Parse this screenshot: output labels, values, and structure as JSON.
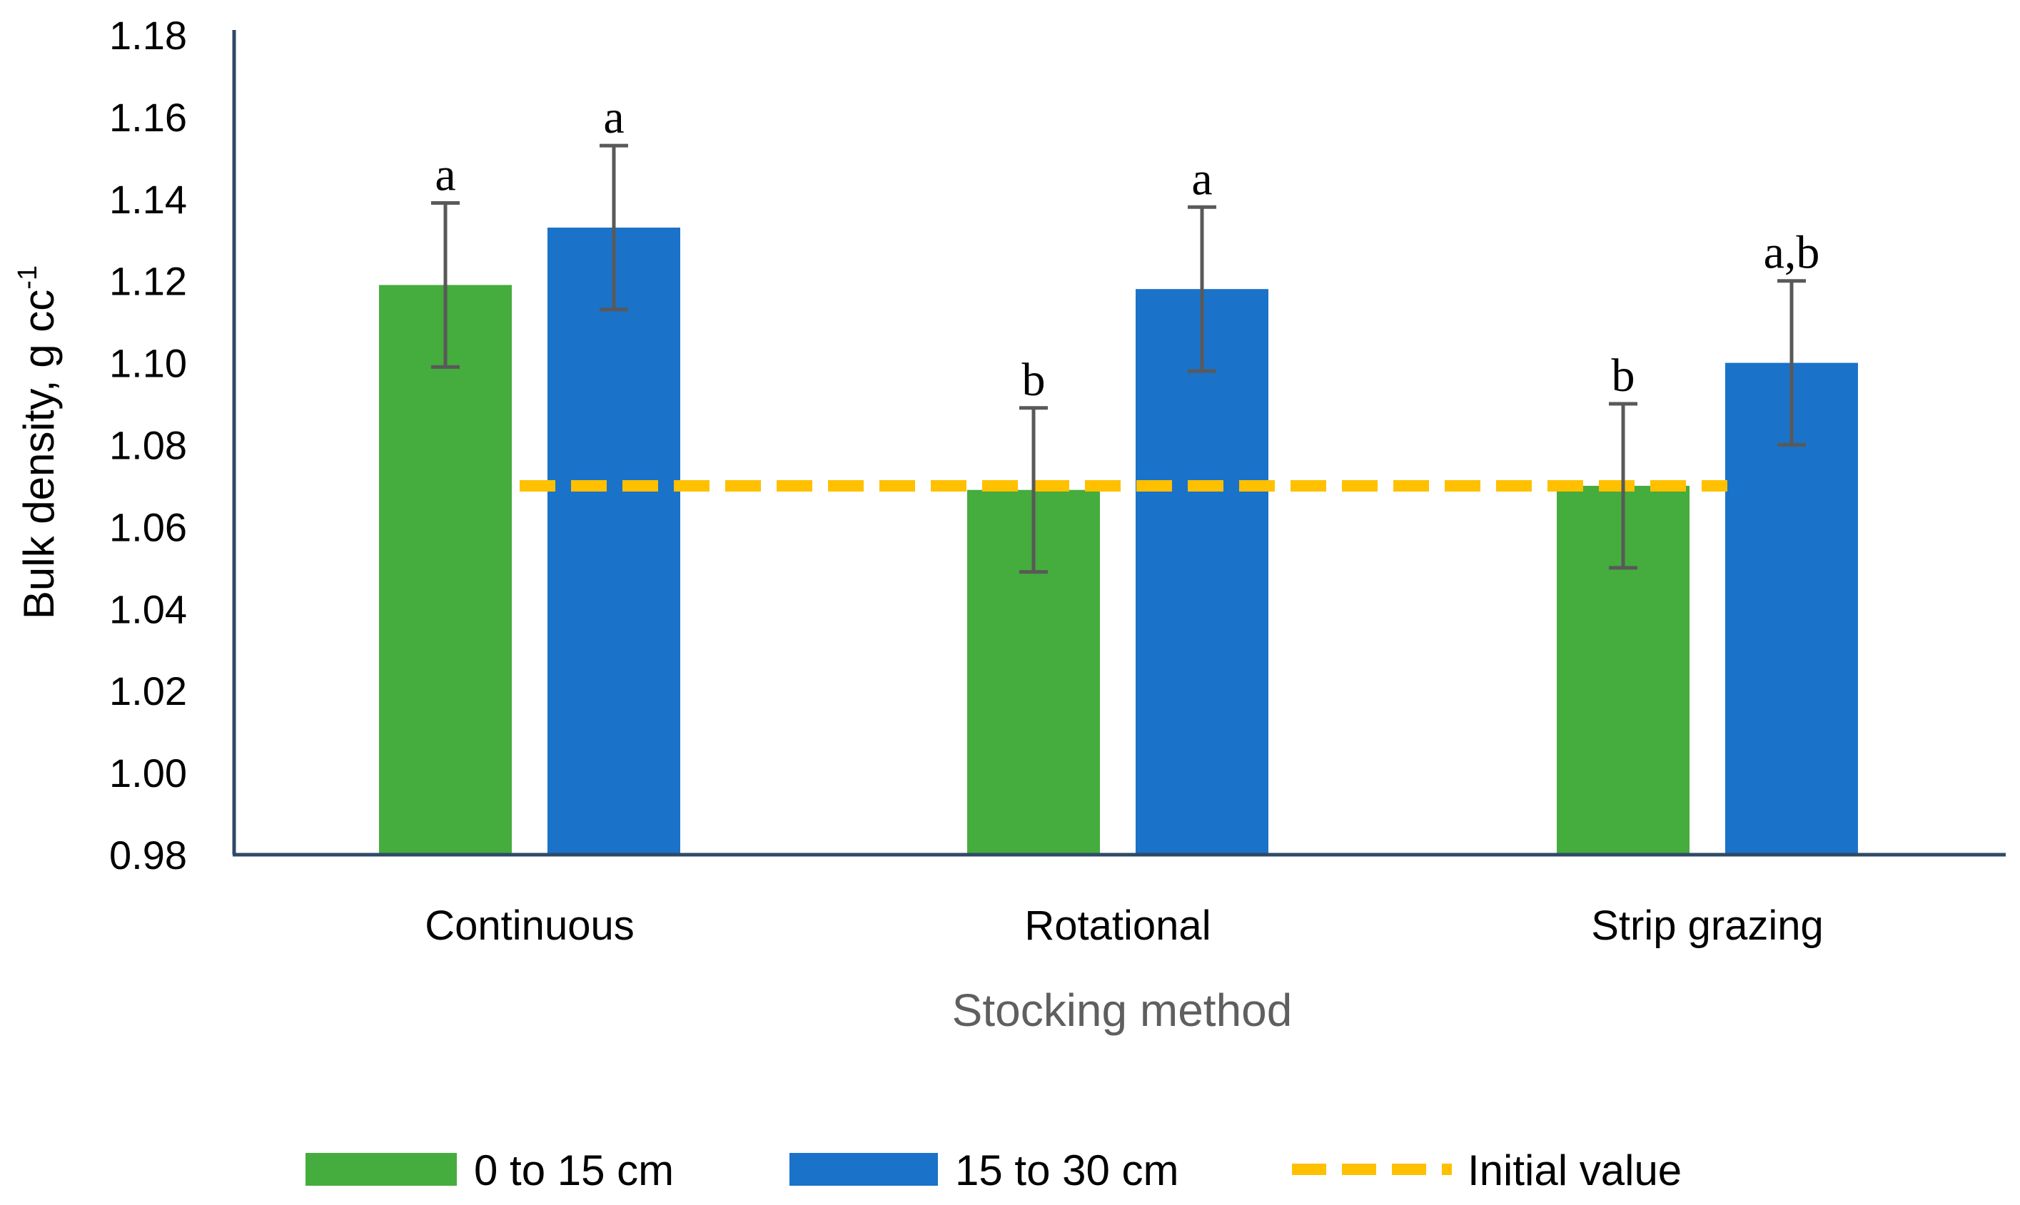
{
  "chart_data": {
    "type": "bar",
    "title": "",
    "xlabel": "Stocking method",
    "ylabel": "Bulk density, g cc",
    "ylabel_superscript": "-1",
    "ylim": [
      0.98,
      1.18
    ],
    "yticks": [
      "0.98",
      "1.00",
      "1.02",
      "1.04",
      "1.06",
      "1.08",
      "1.10",
      "1.12",
      "1.14",
      "1.16",
      "1.18"
    ],
    "grid": false,
    "categories": [
      "Continuous",
      "Rotational",
      "Strip grazing"
    ],
    "series": [
      {
        "name": "0 to 15 cm",
        "color": "#45AC3E",
        "values": [
          1.119,
          1.069,
          1.07
        ],
        "error": [
          0.02,
          0.02,
          0.02
        ],
        "significance": [
          "a",
          "b",
          "b"
        ]
      },
      {
        "name": "15 to 30 cm",
        "color": "#1B72C9",
        "values": [
          1.133,
          1.118,
          1.1
        ],
        "error": [
          0.02,
          0.02,
          0.02
        ],
        "significance": [
          "a",
          "a",
          "a,b"
        ]
      }
    ],
    "reference_line": {
      "name": "Initial value",
      "value": 1.07,
      "color": "#FFC000",
      "style": "dashed"
    },
    "legend_position": "bottom"
  }
}
